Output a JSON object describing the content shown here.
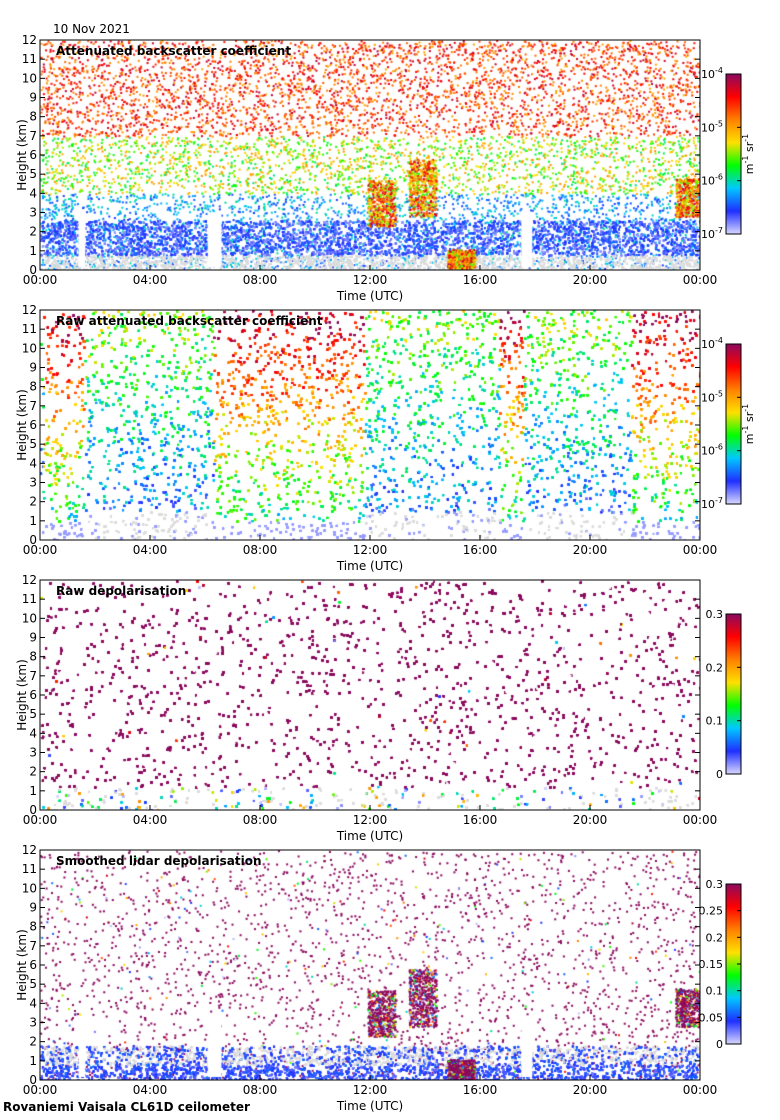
{
  "header": {
    "date": "10 Nov 2021"
  },
  "footer": {
    "instrument": "Rovaniemi Vaisala CL61D ceilometer"
  },
  "colors": {
    "cloud_white": "#ffffff",
    "background_gray": "#dcdcdc",
    "colorscale": [
      "#d8d8ff",
      "#1f2fff",
      "#00c8ff",
      "#00ff00",
      "#ffe000",
      "#ff8000",
      "#ff0000",
      "#8b0a5e"
    ]
  },
  "chart_data": [
    {
      "type": "heatmap",
      "title": "Attenuated backscatter coefficient",
      "xlabel": "Time (UTC)",
      "ylabel": "Height (km)",
      "x_ticks": [
        "00:00",
        "04:00",
        "08:00",
        "12:00",
        "16:00",
        "20:00",
        "00:00"
      ],
      "y_ticks": [
        "0",
        "1",
        "2",
        "3",
        "4",
        "5",
        "6",
        "7",
        "8",
        "9",
        "10",
        "11",
        "12"
      ],
      "xlim": [
        0,
        24
      ],
      "ylim": [
        0,
        12
      ],
      "colorbar": {
        "scale": "log",
        "range": [
          1e-07,
          0.0001
        ],
        "ticks": [
          {
            "base": "10",
            "exp": "-4",
            "value": 0.0001
          },
          {
            "base": "10",
            "exp": "-5",
            "value": 1e-05
          },
          {
            "base": "10",
            "exp": "-6",
            "value": 1e-06
          },
          {
            "base": "10",
            "exp": "-7",
            "value": 1e-07
          }
        ],
        "unit": {
          "m": "m",
          "m_exp": "-1",
          "sr": "sr",
          "sr_exp": "-1"
        }
      }
    },
    {
      "type": "heatmap",
      "title": "Raw attenuated backscatter coefficient",
      "xlabel": "Time (UTC)",
      "ylabel": "Height (km)",
      "x_ticks": [
        "00:00",
        "04:00",
        "08:00",
        "12:00",
        "16:00",
        "20:00",
        "00:00"
      ],
      "y_ticks": [
        "0",
        "1",
        "2",
        "3",
        "4",
        "5",
        "6",
        "7",
        "8",
        "9",
        "10",
        "11",
        "12"
      ],
      "xlim": [
        0,
        24
      ],
      "ylim": [
        0,
        12
      ],
      "colorbar": {
        "scale": "log",
        "range": [
          1e-07,
          0.0001
        ],
        "ticks": [
          {
            "base": "10",
            "exp": "-4",
            "value": 0.0001
          },
          {
            "base": "10",
            "exp": "-5",
            "value": 1e-05
          },
          {
            "base": "10",
            "exp": "-6",
            "value": 1e-06
          },
          {
            "base": "10",
            "exp": "-7",
            "value": 1e-07
          }
        ],
        "unit": {
          "m": "m",
          "m_exp": "-1",
          "sr": "sr",
          "sr_exp": "-1"
        }
      }
    },
    {
      "type": "heatmap",
      "title": "Raw depolarisation",
      "xlabel": "Time (UTC)",
      "ylabel": "Height (km)",
      "x_ticks": [
        "00:00",
        "04:00",
        "08:00",
        "12:00",
        "16:00",
        "20:00",
        "00:00"
      ],
      "y_ticks": [
        "0",
        "1",
        "2",
        "3",
        "4",
        "5",
        "6",
        "7",
        "8",
        "9",
        "10",
        "11",
        "12"
      ],
      "xlim": [
        0,
        24
      ],
      "ylim": [
        0,
        12
      ],
      "colorbar": {
        "scale": "linear",
        "range": [
          0,
          0.3
        ],
        "ticks": [
          {
            "label": "0.3",
            "value": 0.3
          },
          {
            "label": "0.2",
            "value": 0.2
          },
          {
            "label": "0.1",
            "value": 0.1
          },
          {
            "label": "0",
            "value": 0
          }
        ]
      }
    },
    {
      "type": "heatmap",
      "title": "Smoothed lidar depolarisation",
      "xlabel": "Time (UTC)",
      "ylabel": "Height (km)",
      "x_ticks": [
        "00:00",
        "04:00",
        "08:00",
        "12:00",
        "16:00",
        "20:00",
        "00:00"
      ],
      "y_ticks": [
        "0",
        "1",
        "2",
        "3",
        "4",
        "5",
        "6",
        "7",
        "8",
        "9",
        "10",
        "11",
        "12"
      ],
      "xlim": [
        0,
        24
      ],
      "ylim": [
        0,
        12
      ],
      "colorbar": {
        "scale": "linear",
        "range": [
          0,
          0.3
        ],
        "ticks": [
          {
            "label": "0.3",
            "value": 0.3
          },
          {
            "label": "0.25",
            "value": 0.25
          },
          {
            "label": "0.2",
            "value": 0.2
          },
          {
            "label": "0.15",
            "value": 0.15
          },
          {
            "label": "0.1",
            "value": 0.1
          },
          {
            "label": "0.05",
            "value": 0.05
          },
          {
            "label": "0",
            "value": 0
          }
        ]
      }
    }
  ]
}
